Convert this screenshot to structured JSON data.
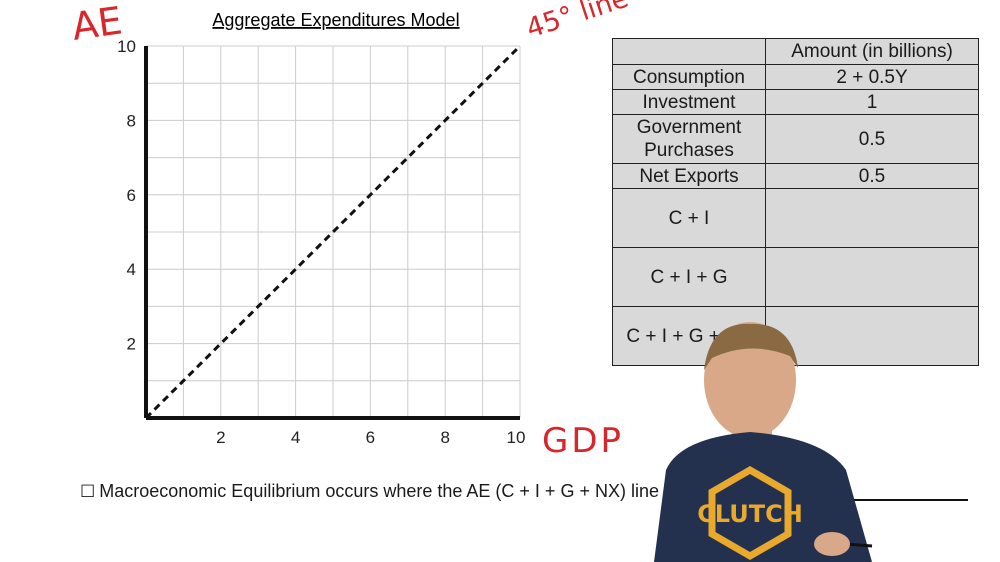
{
  "chart_data": {
    "type": "line",
    "title": "Aggregate Expenditures Model",
    "xlabel": "GDP",
    "ylabel": "AE",
    "xlim": [
      0,
      10
    ],
    "ylim": [
      0,
      10
    ],
    "xticks": [
      2,
      4,
      6,
      8,
      10
    ],
    "yticks": [
      2,
      4,
      6,
      8,
      10
    ],
    "grid": true,
    "series": [
      {
        "name": "45° line",
        "style": "dashed",
        "color": "#111111",
        "x": [
          0,
          10
        ],
        "y": [
          0,
          10
        ]
      }
    ]
  },
  "table": {
    "header": [
      "",
      "Amount (in billions)"
    ],
    "rows": [
      {
        "label": "Consumption",
        "value": "2 + 0.5Y"
      },
      {
        "label": "Investment",
        "value": "1"
      },
      {
        "label": "Government Purchases",
        "value": "0.5"
      },
      {
        "label": "Net Exports",
        "value": "0.5"
      },
      {
        "label": "C + I",
        "value": ""
      },
      {
        "label": "C + I + G",
        "value": ""
      },
      {
        "label": "C + I + G + NX",
        "value": ""
      }
    ]
  },
  "footnote": {
    "checkbox": "☐",
    "text": "Macroeconomic Equilibrium occurs where the AE (C + I + G + NX) line"
  },
  "colors": {
    "annotation": "#d8262b",
    "table_fill": "#d9d9d9",
    "grid": "#cccccc"
  },
  "presenter": {
    "shirt_text": "CLUTCH"
  }
}
